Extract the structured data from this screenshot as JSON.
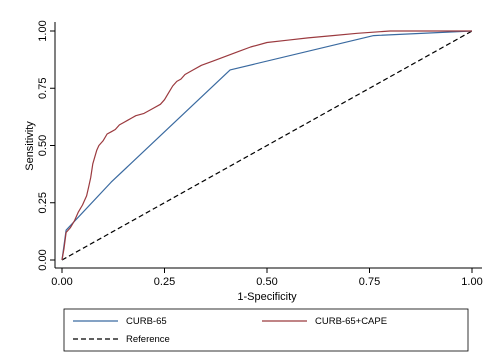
{
  "chart_data": {
    "type": "line",
    "xlabel": "1-Specificity",
    "ylabel": "Sensitivity",
    "xlim": [
      0,
      1
    ],
    "ylim": [
      0,
      1
    ],
    "x_ticks": [
      "0.00",
      "0.25",
      "0.50",
      "0.75",
      "1.00"
    ],
    "y_ticks": [
      "0.00",
      "0.25",
      "0.50",
      "0.75",
      "1.00"
    ],
    "grid": false,
    "legend_placement": "bottom",
    "colors": {
      "curb65": "#3a6aa0",
      "curb65_cape": "#9b3a3f",
      "reference": "#000000"
    },
    "series": [
      {
        "name": "CURB-65",
        "x": [
          0,
          0.01,
          0.12,
          0.41,
          0.76,
          1.0
        ],
        "y": [
          0,
          0.13,
          0.34,
          0.83,
          0.98,
          1.0
        ]
      },
      {
        "name": "CURB-65+CAPE",
        "x": [
          0,
          0.005,
          0.01,
          0.02,
          0.03,
          0.04,
          0.05,
          0.055,
          0.06,
          0.065,
          0.07,
          0.075,
          0.08,
          0.085,
          0.09,
          0.1,
          0.11,
          0.12,
          0.13,
          0.14,
          0.15,
          0.16,
          0.17,
          0.18,
          0.2,
          0.22,
          0.24,
          0.25,
          0.26,
          0.27,
          0.28,
          0.29,
          0.3,
          0.32,
          0.34,
          0.37,
          0.4,
          0.43,
          0.46,
          0.5,
          0.55,
          0.6,
          0.66,
          0.72,
          0.8,
          0.88,
          1.0
        ],
        "y": [
          0,
          0.05,
          0.12,
          0.14,
          0.17,
          0.21,
          0.24,
          0.26,
          0.28,
          0.32,
          0.36,
          0.42,
          0.45,
          0.48,
          0.5,
          0.52,
          0.55,
          0.56,
          0.57,
          0.59,
          0.6,
          0.61,
          0.62,
          0.63,
          0.64,
          0.66,
          0.68,
          0.7,
          0.73,
          0.76,
          0.78,
          0.79,
          0.81,
          0.83,
          0.85,
          0.87,
          0.89,
          0.91,
          0.93,
          0.95,
          0.96,
          0.97,
          0.98,
          0.99,
          1.0,
          1.0,
          1.0
        ]
      },
      {
        "name": "Reference",
        "x": [
          0,
          1
        ],
        "y": [
          0,
          1
        ]
      }
    ]
  }
}
